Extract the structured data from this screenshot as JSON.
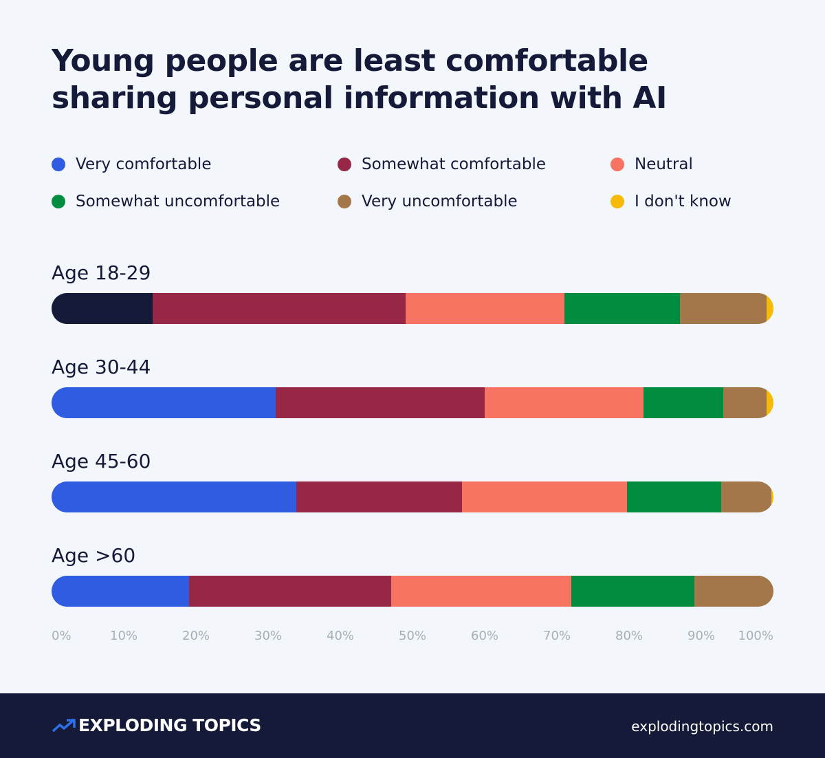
{
  "chart_data": {
    "type": "bar",
    "orientation": "horizontal",
    "stacked": true,
    "title": "Young people are least comfortable sharing personal information with AI",
    "categories": [
      "Age 18-29",
      "Age 30-44",
      "Age 45-60",
      "Age >60"
    ],
    "series": [
      {
        "name": "Very comfortable",
        "color": "#2f5ce0",
        "values": [
          14,
          31,
          34,
          19
        ]
      },
      {
        "name": "Somewhat comfortable",
        "color": "#962747",
        "values": [
          35,
          29,
          23,
          28
        ]
      },
      {
        "name": "Neutral",
        "color": "#f77463",
        "values": [
          22,
          22,
          23,
          25
        ]
      },
      {
        "name": "Somewhat uncomfortable",
        "color": "#028c3f",
        "values": [
          16,
          11,
          13,
          17
        ]
      },
      {
        "name": "Very uncomfortable",
        "color": "#a4774a",
        "values": [
          12,
          6,
          7,
          11
        ]
      },
      {
        "name": "I don't know",
        "color": "#f5bb08",
        "values": [
          1,
          1,
          0.3,
          0
        ]
      }
    ],
    "segment_color_overrides": [
      {
        "category": "Age 18-29",
        "series": "Very comfortable",
        "color": "#141a38"
      }
    ],
    "xlim": [
      0,
      100
    ],
    "x_ticks": [
      "0%",
      "10%",
      "20%",
      "30%",
      "40%",
      "50%",
      "60%",
      "70%",
      "80%",
      "90%",
      "100%"
    ],
    "legend_position": "top",
    "grid": false
  },
  "footer": {
    "brand": "EXPLODING TOPICS",
    "site": "explodingtopics.com",
    "logo_icon": "trending-up-arrow-icon",
    "background": "#141a38"
  }
}
